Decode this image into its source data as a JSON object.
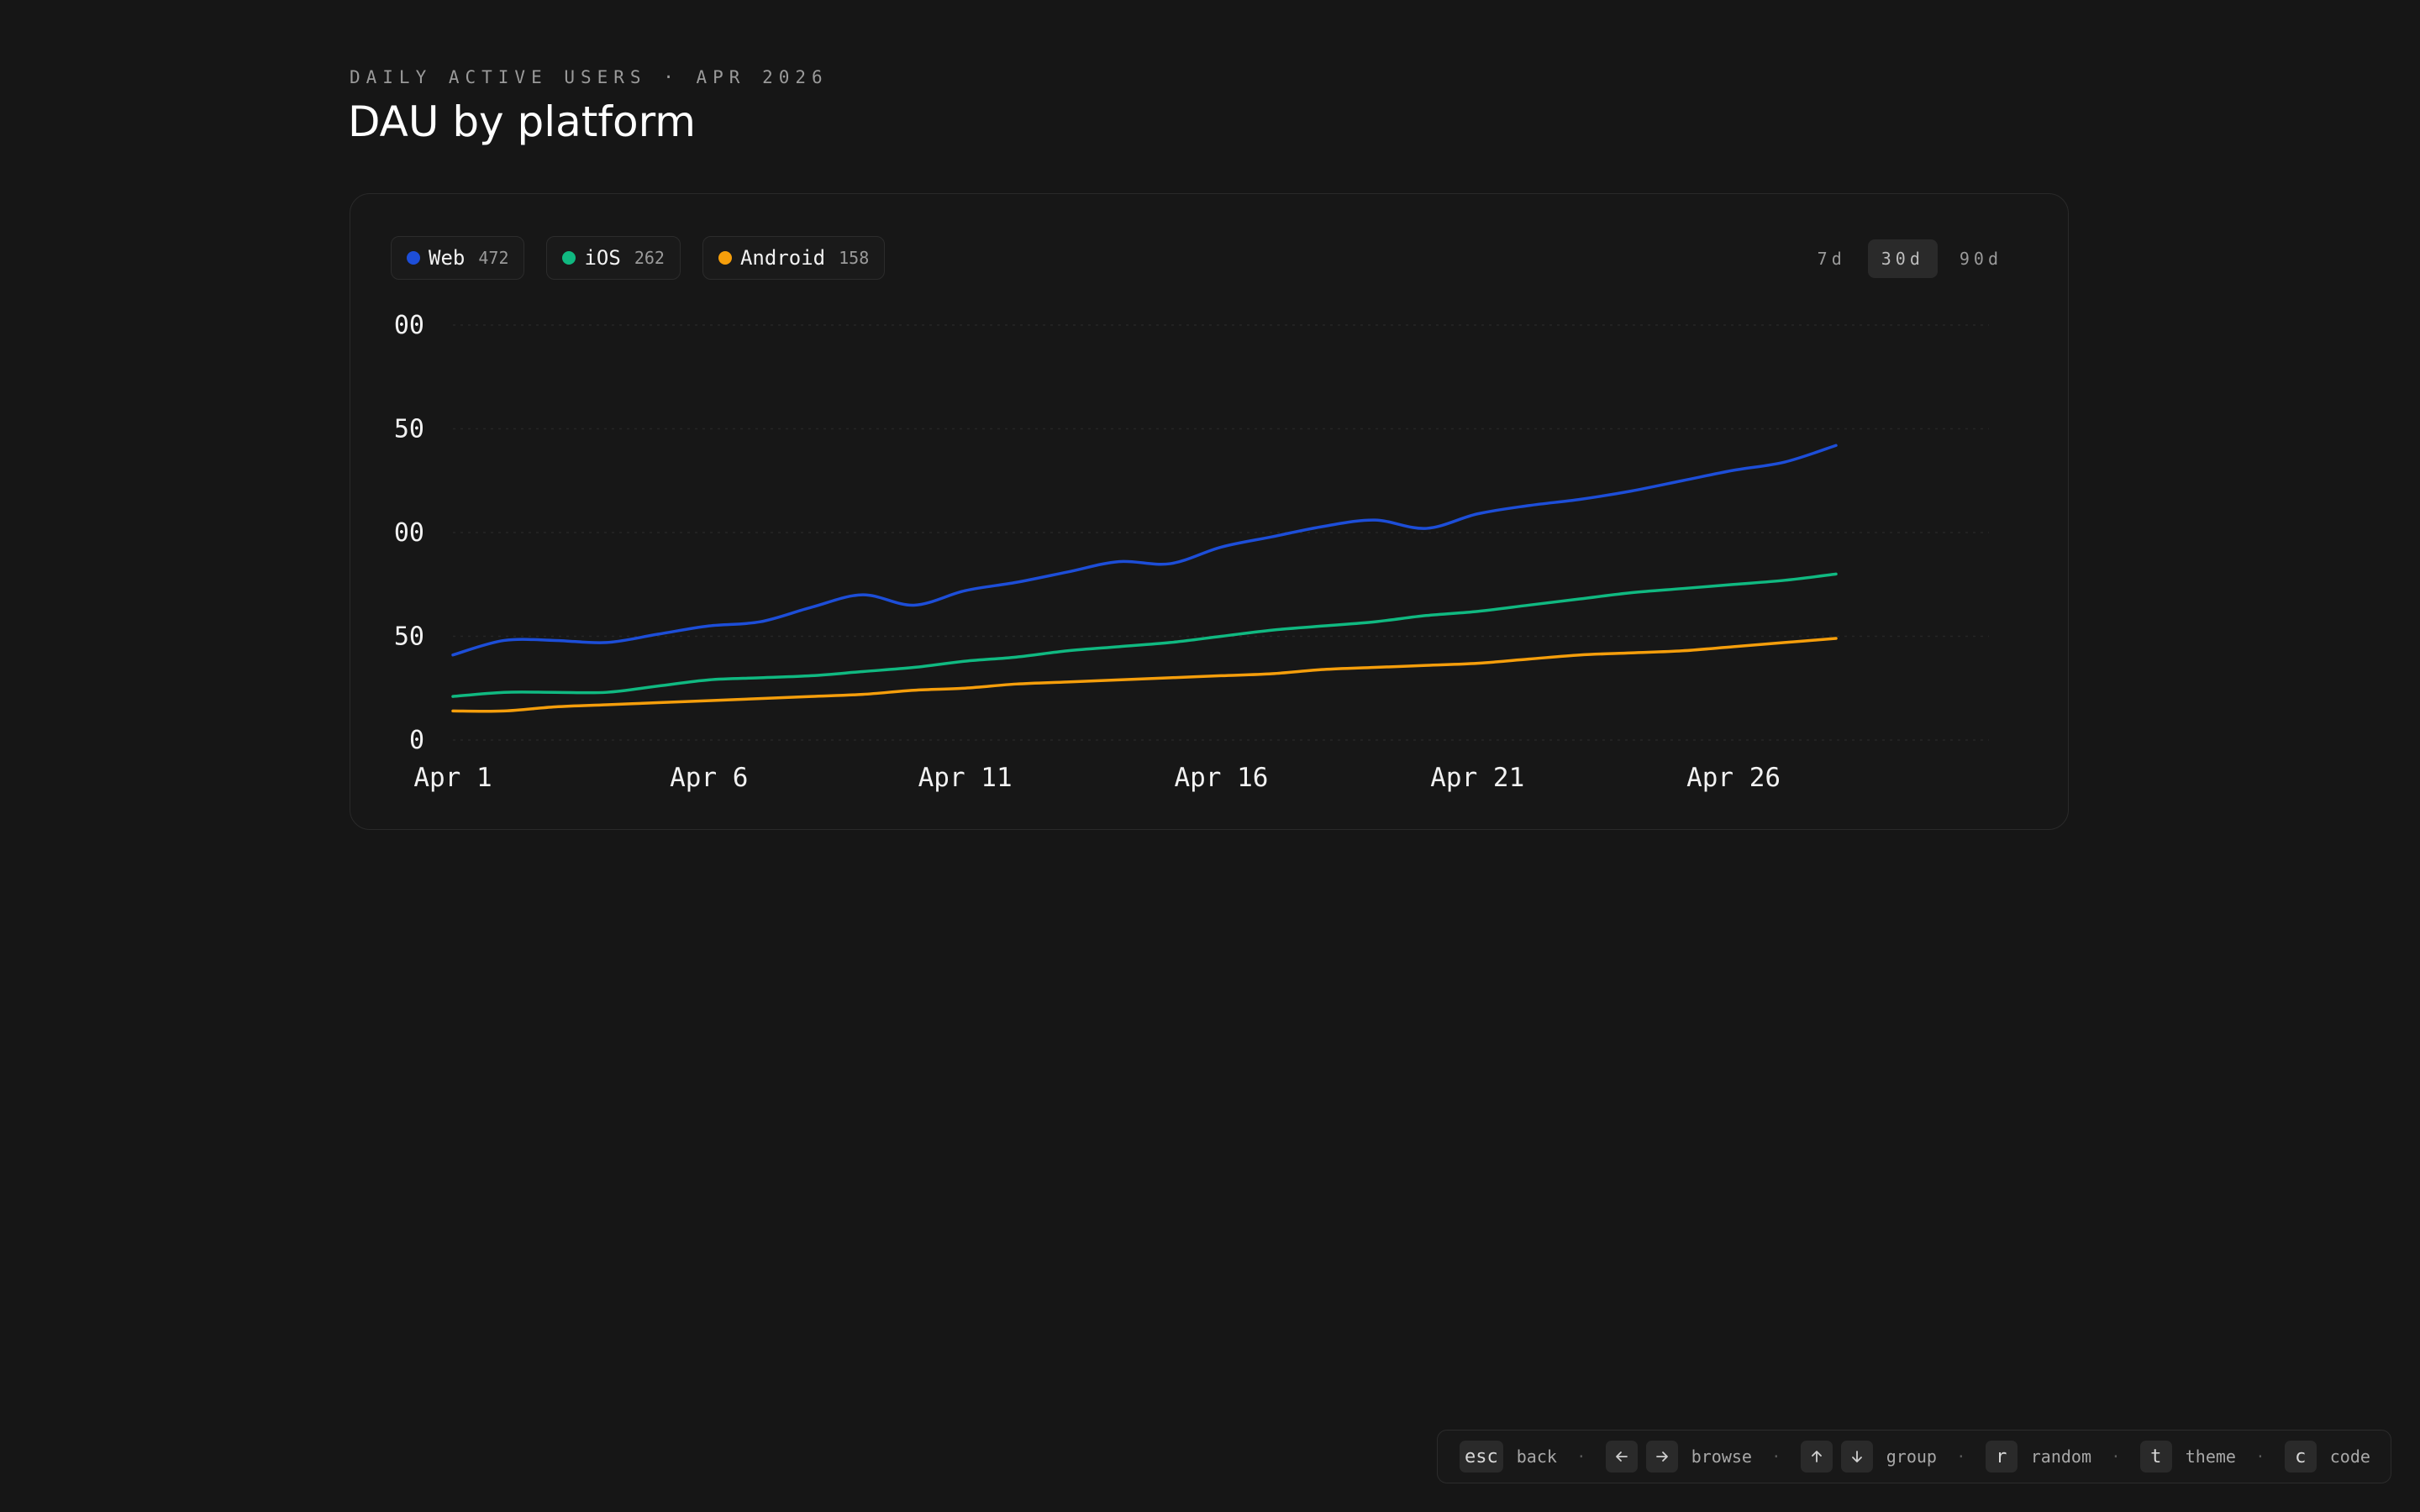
{
  "header": {
    "eyebrow": "DAILY ACTIVE USERS · APR 2026",
    "title": "DAU by platform"
  },
  "legend": [
    {
      "name": "Web",
      "value": "472",
      "color": "#1d4ed8"
    },
    {
      "name": "iOS",
      "value": "262",
      "color": "#10b981"
    },
    {
      "name": "Android",
      "value": "158",
      "color": "#f59e0b"
    }
  ],
  "ranges": [
    {
      "label": "7d",
      "active": false
    },
    {
      "label": "30d",
      "active": true
    },
    {
      "label": "90d",
      "active": false
    }
  ],
  "chart_data": {
    "type": "line",
    "title": "",
    "xlabel": "",
    "ylabel": "",
    "x": [
      "Apr 1",
      "Apr 2",
      "Apr 3",
      "Apr 4",
      "Apr 5",
      "Apr 6",
      "Apr 7",
      "Apr 8",
      "Apr 9",
      "Apr 10",
      "Apr 11",
      "Apr 12",
      "Apr 13",
      "Apr 14",
      "Apr 15",
      "Apr 16",
      "Apr 17",
      "Apr 18",
      "Apr 19",
      "Apr 20",
      "Apr 21",
      "Apr 22",
      "Apr 23",
      "Apr 24",
      "Apr 25",
      "Apr 26",
      "Apr 27",
      "Apr 28"
    ],
    "x_ticks": [
      "Apr 1",
      "Apr 6",
      "Apr 11",
      "Apr 16",
      "Apr 21",
      "Apr 26"
    ],
    "y_ticks": [
      "0",
      "50",
      "00",
      "50",
      "00"
    ],
    "ylim": [
      0,
      200
    ],
    "grid": true,
    "series": [
      {
        "name": "Web",
        "color": "#1d4ed8",
        "values": [
          41,
          48,
          48,
          47,
          51,
          55,
          57,
          64,
          70,
          65,
          72,
          76,
          81,
          86,
          85,
          93,
          98,
          103,
          106,
          102,
          109,
          113,
          116,
          120,
          125,
          130,
          134,
          142
        ]
      },
      {
        "name": "iOS",
        "color": "#10b981",
        "values": [
          21,
          23,
          23,
          23,
          26,
          29,
          30,
          31,
          33,
          35,
          38,
          40,
          43,
          45,
          47,
          50,
          53,
          55,
          57,
          60,
          62,
          65,
          68,
          71,
          73,
          75,
          77,
          80
        ]
      },
      {
        "name": "Android",
        "color": "#f59e0b",
        "values": [
          14,
          14,
          16,
          17,
          18,
          19,
          20,
          21,
          22,
          24,
          25,
          27,
          28,
          29,
          30,
          31,
          32,
          34,
          35,
          36,
          37,
          39,
          41,
          42,
          43,
          45,
          47,
          49
        ]
      }
    ]
  },
  "footer": [
    {
      "keys": [
        "esc"
      ],
      "label": "back"
    },
    {
      "keys": [
        "arrow-left-icon",
        "arrow-right-icon"
      ],
      "label": "browse"
    },
    {
      "keys": [
        "arrow-up-icon",
        "arrow-down-icon"
      ],
      "label": "group"
    },
    {
      "keys": [
        "r"
      ],
      "label": "random"
    },
    {
      "keys": [
        "t"
      ],
      "label": "theme"
    },
    {
      "keys": [
        "c"
      ],
      "label": "code"
    }
  ]
}
